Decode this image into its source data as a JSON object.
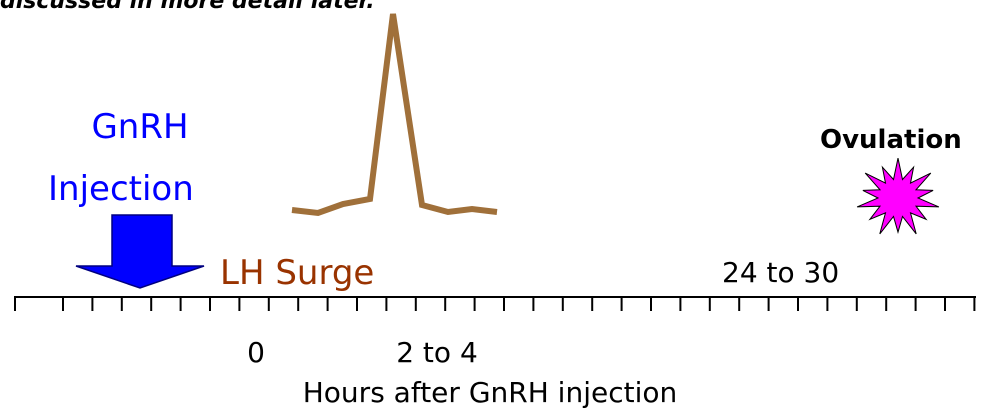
{
  "header": {
    "caption": "discussed in more detail later."
  },
  "labels": {
    "gnrh": "GnRH",
    "injection": "Injection",
    "lh_surge": "LH Surge",
    "ovulation": "Ovulation",
    "ovulation_time": "24 to 30"
  },
  "axis": {
    "tick_zero": "0",
    "tick_surge": "2 to 4",
    "title": "Hours after GnRH injection"
  }
}
